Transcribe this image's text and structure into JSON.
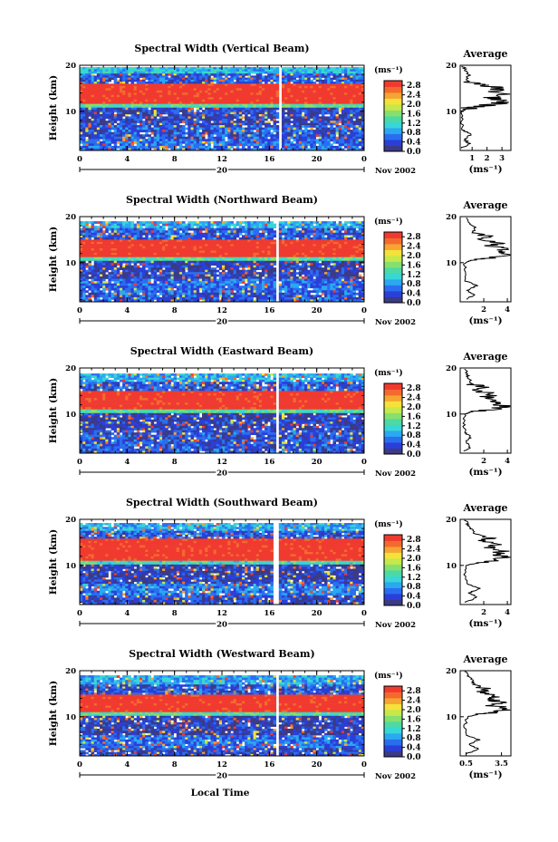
{
  "figure": {
    "xlabel": "Local Time",
    "ylabel": "Height (km)",
    "date_day": "20",
    "date_month": "Nov 2002",
    "colorbar_unit": "(ms⁻¹)",
    "avg_title": "Average",
    "avg_xlabel": "(ms⁻¹)",
    "colors": [
      "#3a3a86",
      "#2a3fd8",
      "#2a6ef0",
      "#2aa8f0",
      "#38d6d6",
      "#4cd9a4",
      "#86e06e",
      "#c6e84a",
      "#f4e23a",
      "#f6a432",
      "#f46a2e",
      "#f03a30"
    ]
  },
  "chart_data": [
    {
      "type": "heatmap",
      "title": "Spectral Width (Vertical Beam)",
      "x_ticks": [
        "0",
        "4",
        "8",
        "12",
        "16",
        "20",
        "0"
      ],
      "xlim": [
        0,
        24
      ],
      "y_ticks": [
        "20",
        "10"
      ],
      "ylim": [
        1.5,
        20
      ],
      "colorbar_ticks": [
        "2.8",
        "2.4",
        "2.0",
        "1.6",
        "1.2",
        "0.8",
        "0.4",
        "0.0"
      ],
      "colorbar_range": [
        0,
        3.0
      ],
      "bands": [
        {
          "y": [
            18.2,
            19.6
          ],
          "value": 1.0
        },
        {
          "y": [
            16.0,
            18.2
          ],
          "value": 0.5
        },
        {
          "y": [
            11.6,
            16.0
          ],
          "value": 2.9
        },
        {
          "y": [
            10.8,
            11.6
          ],
          "value": 1.4
        },
        {
          "y": [
            7.0,
            10.8
          ],
          "value": 0.35
        },
        {
          "y": [
            3.5,
            7.0
          ],
          "value": 0.5
        },
        {
          "y": [
            1.5,
            3.5
          ],
          "value": 0.6
        }
      ],
      "gap_hours": [
        16.8,
        17.1
      ],
      "average": {
        "x_ticks": [
          "1",
          "2",
          "3"
        ],
        "xlim": [
          0.2,
          3.6
        ],
        "y_ticks": [
          "20",
          "10"
        ],
        "profile": [
          [
            0.3,
            2
          ],
          [
            0.8,
            3
          ],
          [
            0.5,
            4
          ],
          [
            0.9,
            5
          ],
          [
            0.4,
            6
          ],
          [
            0.3,
            8
          ],
          [
            0.3,
            10
          ],
          [
            0.5,
            10.5
          ],
          [
            1.2,
            11
          ],
          [
            2.6,
            11.6
          ],
          [
            3.2,
            12.3
          ],
          [
            2.2,
            13
          ],
          [
            3.4,
            13.6
          ],
          [
            2.4,
            14.3
          ],
          [
            3.1,
            15
          ],
          [
            2.0,
            15.6
          ],
          [
            1.0,
            16
          ],
          [
            0.6,
            17
          ],
          [
            0.8,
            18
          ],
          [
            0.5,
            19
          ],
          [
            0.4,
            20
          ]
        ]
      }
    },
    {
      "type": "heatmap",
      "title": "Spectral Width (Northward Beam)",
      "x_ticks": [
        "0",
        "4",
        "8",
        "12",
        "16",
        "20",
        "0"
      ],
      "xlim": [
        0,
        24
      ],
      "y_ticks": [
        "20",
        "10"
      ],
      "ylim": [
        1.5,
        20
      ],
      "colorbar_ticks": [
        "2.8",
        "2.4",
        "2.0",
        "1.6",
        "1.2",
        "0.8",
        "0.4",
        "0.0"
      ],
      "colorbar_range": [
        0,
        3.0
      ],
      "bands": [
        {
          "y": [
            17.5,
            19.0
          ],
          "value": 0.9
        },
        {
          "y": [
            15.0,
            17.5
          ],
          "value": 0.5
        },
        {
          "y": [
            11.2,
            15.0
          ],
          "value": 2.9
        },
        {
          "y": [
            10.4,
            11.2
          ],
          "value": 1.4
        },
        {
          "y": [
            6.5,
            10.4
          ],
          "value": 0.3
        },
        {
          "y": [
            3.5,
            6.5
          ],
          "value": 0.6
        },
        {
          "y": [
            1.5,
            3.5
          ],
          "value": 0.5
        }
      ],
      "gap_hours": [
        16.6,
        16.9
      ],
      "average": {
        "x_ticks": [
          "2",
          "4"
        ],
        "xlim": [
          0,
          4.3
        ],
        "y_ticks": [
          "20",
          "10"
        ],
        "profile": [
          [
            0.5,
            2
          ],
          [
            1.2,
            3
          ],
          [
            0.6,
            4
          ],
          [
            1.4,
            5
          ],
          [
            0.5,
            6
          ],
          [
            0.4,
            8
          ],
          [
            0.4,
            10
          ],
          [
            0.9,
            10.5
          ],
          [
            2.5,
            11
          ],
          [
            4.0,
            11.6
          ],
          [
            3.2,
            12.3
          ],
          [
            4.1,
            13
          ],
          [
            2.5,
            13.7
          ],
          [
            3.5,
            14.2
          ],
          [
            1.6,
            15
          ],
          [
            2.4,
            15.8
          ],
          [
            1.0,
            16.5
          ],
          [
            1.3,
            17.5
          ],
          [
            0.8,
            18.5
          ],
          [
            0.5,
            20
          ]
        ]
      }
    },
    {
      "type": "heatmap",
      "title": "Spectral Width (Eastward Beam)",
      "x_ticks": [
        "0",
        "4",
        "8",
        "12",
        "16",
        "20",
        "0"
      ],
      "xlim": [
        0,
        24
      ],
      "y_ticks": [
        "20",
        "10"
      ],
      "ylim": [
        1.5,
        20
      ],
      "colorbar_ticks": [
        "2.8",
        "2.4",
        "2.0",
        "1.6",
        "1.2",
        "0.8",
        "0.4",
        "0.0"
      ],
      "colorbar_range": [
        0,
        3.0
      ],
      "bands": [
        {
          "y": [
            17.0,
            18.8
          ],
          "value": 0.9
        },
        {
          "y": [
            15.0,
            17.0
          ],
          "value": 0.5
        },
        {
          "y": [
            11.0,
            15.0
          ],
          "value": 2.9
        },
        {
          "y": [
            10.2,
            11.0
          ],
          "value": 1.4
        },
        {
          "y": [
            6.5,
            10.2
          ],
          "value": 0.3
        },
        {
          "y": [
            3.5,
            6.5
          ],
          "value": 0.45
        },
        {
          "y": [
            1.5,
            3.5
          ],
          "value": 0.5
        }
      ],
      "gap_hours": [
        16.6,
        16.9
      ],
      "average": {
        "x_ticks": [
          "2",
          "4"
        ],
        "xlim": [
          0,
          4.3
        ],
        "y_ticks": [
          "20",
          "10"
        ],
        "profile": [
          [
            0.4,
            2
          ],
          [
            0.9,
            3
          ],
          [
            0.5,
            4
          ],
          [
            0.9,
            5
          ],
          [
            0.4,
            6
          ],
          [
            0.3,
            8
          ],
          [
            0.4,
            10
          ],
          [
            1.0,
            10.5
          ],
          [
            2.8,
            11
          ],
          [
            3.9,
            11.7
          ],
          [
            2.6,
            12.4
          ],
          [
            3.6,
            13
          ],
          [
            2.0,
            13.7
          ],
          [
            3.0,
            14.3
          ],
          [
            1.4,
            15
          ],
          [
            2.2,
            15.8
          ],
          [
            1.0,
            16.5
          ],
          [
            0.8,
            17.5
          ],
          [
            0.6,
            18.5
          ],
          [
            0.4,
            20
          ]
        ]
      }
    },
    {
      "type": "heatmap",
      "title": "Spectral Width (Southward Beam)",
      "x_ticks": [
        "0",
        "4",
        "8",
        "12",
        "16",
        "20",
        "0"
      ],
      "xlim": [
        0,
        24
      ],
      "y_ticks": [
        "20",
        "10"
      ],
      "ylim": [
        1.5,
        20
      ],
      "colorbar_ticks": [
        "2.8",
        "2.4",
        "2.0",
        "1.6",
        "1.2",
        "0.8",
        "0.4",
        "0.0"
      ],
      "colorbar_range": [
        0,
        3.0
      ],
      "bands": [
        {
          "y": [
            17.5,
            19.2
          ],
          "value": 0.9
        },
        {
          "y": [
            15.8,
            17.5
          ],
          "value": 0.5
        },
        {
          "y": [
            11.0,
            15.8
          ],
          "value": 2.9
        },
        {
          "y": [
            10.2,
            11.0
          ],
          "value": 1.3
        },
        {
          "y": [
            6.0,
            10.2
          ],
          "value": 0.3
        },
        {
          "y": [
            3.5,
            6.0
          ],
          "value": 0.7
        },
        {
          "y": [
            1.5,
            3.5
          ],
          "value": 0.4
        }
      ],
      "gap_hours": [
        16.4,
        16.7
      ],
      "average": {
        "x_ticks": [
          "2",
          "4"
        ],
        "xlim": [
          0,
          4.3
        ],
        "y_ticks": [
          "20",
          "10"
        ],
        "profile": [
          [
            0.5,
            2
          ],
          [
            1.4,
            3
          ],
          [
            0.8,
            4
          ],
          [
            1.6,
            5
          ],
          [
            0.6,
            6
          ],
          [
            0.4,
            8
          ],
          [
            0.5,
            10
          ],
          [
            1.5,
            10.5
          ],
          [
            3.0,
            11
          ],
          [
            3.9,
            11.8
          ],
          [
            3.2,
            12.5
          ],
          [
            3.7,
            13.2
          ],
          [
            2.5,
            14
          ],
          [
            3.3,
            14.6
          ],
          [
            1.8,
            15.4
          ],
          [
            2.5,
            16
          ],
          [
            1.2,
            17
          ],
          [
            0.9,
            18
          ],
          [
            0.6,
            19
          ],
          [
            0.4,
            20
          ]
        ]
      }
    },
    {
      "type": "heatmap",
      "title": "Spectral Width (Westward Beam)",
      "x_ticks": [
        "0",
        "4",
        "8",
        "12",
        "16",
        "20",
        "0"
      ],
      "xlim": [
        0,
        24
      ],
      "y_ticks": [
        "20",
        "10"
      ],
      "ylim": [
        1.5,
        20
      ],
      "colorbar_ticks": [
        "2.8",
        "2.4",
        "2.0",
        "1.6",
        "1.2",
        "0.8",
        "0.4",
        "0.0"
      ],
      "colorbar_range": [
        0,
        3.0
      ],
      "bands": [
        {
          "y": [
            17.0,
            19.0
          ],
          "value": 0.9
        },
        {
          "y": [
            14.8,
            17.0
          ],
          "value": 0.5
        },
        {
          "y": [
            11.0,
            14.8
          ],
          "value": 2.9
        },
        {
          "y": [
            10.2,
            11.0
          ],
          "value": 1.4
        },
        {
          "y": [
            6.0,
            10.2
          ],
          "value": 0.3
        },
        {
          "y": [
            3.2,
            6.0
          ],
          "value": 0.6
        },
        {
          "y": [
            1.5,
            3.2
          ],
          "value": 0.4
        }
      ],
      "gap_hours": [
        16.6,
        16.9
      ],
      "average": {
        "x_ticks": [
          "0.5",
          "3.5"
        ],
        "xlim": [
          0,
          4.3
        ],
        "y_ticks": [
          "20",
          "10"
        ],
        "profile": [
          [
            0.6,
            2
          ],
          [
            1.5,
            3
          ],
          [
            0.7,
            4
          ],
          [
            1.6,
            5
          ],
          [
            0.6,
            6
          ],
          [
            0.4,
            8
          ],
          [
            0.6,
            10
          ],
          [
            1.6,
            10.5
          ],
          [
            3.2,
            11
          ],
          [
            4.1,
            11.7
          ],
          [
            2.8,
            12.4
          ],
          [
            3.8,
            13.1
          ],
          [
            2.2,
            13.8
          ],
          [
            3.3,
            14.4
          ],
          [
            1.6,
            15.2
          ],
          [
            2.4,
            16
          ],
          [
            1.2,
            17
          ],
          [
            1.0,
            18
          ],
          [
            0.6,
            19
          ],
          [
            0.4,
            20
          ]
        ]
      }
    }
  ]
}
